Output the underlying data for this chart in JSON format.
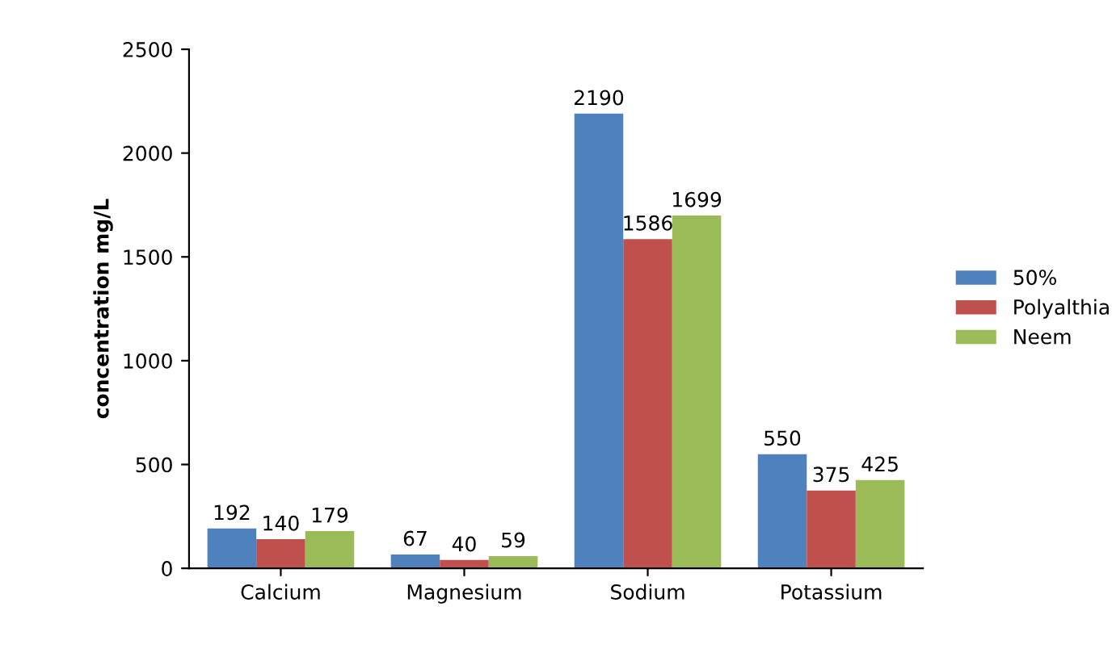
{
  "chart_data": {
    "type": "bar",
    "ylabel": "concentration mg/L",
    "categories": [
      "Calcium",
      "Magnesium",
      "Sodium",
      "Potassium"
    ],
    "series": [
      {
        "name": "50%",
        "color": "#4f81bd",
        "values": [
          192,
          67,
          2190,
          550
        ]
      },
      {
        "name": "Polyalthia",
        "color": "#c0504d",
        "values": [
          140,
          40,
          1586,
          375
        ]
      },
      {
        "name": "Neem",
        "color": "#9bbb59",
        "values": [
          179,
          59,
          1699,
          425
        ]
      }
    ],
    "ylim": [
      0,
      2500
    ],
    "yticks": [
      0,
      500,
      1000,
      1500,
      2000,
      2500
    ],
    "grid": false,
    "legend": "right",
    "data_labels": true
  }
}
